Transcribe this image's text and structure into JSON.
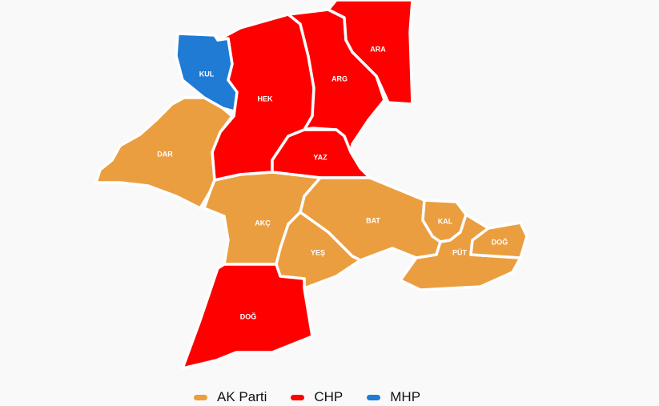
{
  "colors": {
    "ak_parti": "#eb9e40",
    "chp": "#fe0000",
    "mhp": "#1f7bd4",
    "background": "#f9f9f9"
  },
  "regions": [
    {
      "label": "KUL",
      "party": "mhp"
    },
    {
      "label": "HEK",
      "party": "chp"
    },
    {
      "label": "ARG",
      "party": "chp"
    },
    {
      "label": "ARA",
      "party": "chp"
    },
    {
      "label": "YAZ",
      "party": "chp"
    },
    {
      "label": "DAR",
      "party": "ak_parti"
    },
    {
      "label": "AKÇ",
      "party": "ak_parti"
    },
    {
      "label": "BAT",
      "party": "ak_parti"
    },
    {
      "label": "YEŞ",
      "party": "ak_parti"
    },
    {
      "label": "KAL",
      "party": "ak_parti"
    },
    {
      "label": "PÜT",
      "party": "ak_parti"
    },
    {
      "label": "DOĞ",
      "party": "ak_parti"
    },
    {
      "label": "DOĞ",
      "party": "chp"
    }
  ],
  "legend": [
    {
      "label": "AK Parti",
      "party": "ak_parti"
    },
    {
      "label": "CHP",
      "party": "chp"
    },
    {
      "label": "MHP",
      "party": "mhp"
    }
  ]
}
